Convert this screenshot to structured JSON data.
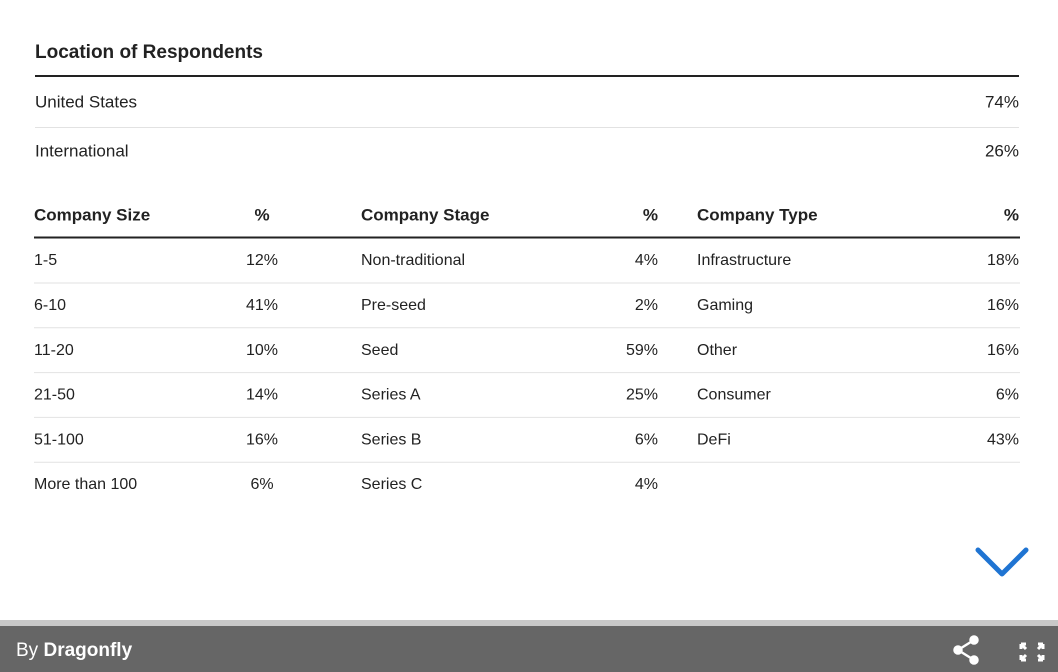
{
  "location": {
    "title": "Location of Respondents",
    "rows": [
      [
        "United States",
        "74%"
      ],
      [
        "International",
        "26%"
      ]
    ]
  },
  "tables": [
    {
      "headers": [
        "Company Size",
        "%"
      ],
      "rows": [
        [
          "1-5",
          "12%"
        ],
        [
          "6-10",
          "41%"
        ],
        [
          "11-20",
          "10%"
        ],
        [
          "21-50",
          "14%"
        ],
        [
          "51-100",
          "16%"
        ],
        [
          "More than 100",
          "6%"
        ]
      ]
    },
    {
      "headers": [
        "Company Stage",
        "%"
      ],
      "rows": [
        [
          "Non-traditional",
          "4%"
        ],
        [
          "Pre-seed",
          "2%"
        ],
        [
          "Seed",
          "59%"
        ],
        [
          "Series A",
          "25%"
        ],
        [
          "Series B",
          "6%"
        ],
        [
          "Series C",
          "4%"
        ]
      ]
    },
    {
      "headers": [
        "Company Type",
        "%"
      ],
      "rows": [
        [
          "Infrastructure",
          "18%"
        ],
        [
          "Gaming",
          "16%"
        ],
        [
          "Other",
          "16%"
        ],
        [
          "Consumer",
          "6%"
        ],
        [
          "DeFi",
          "43%"
        ]
      ]
    }
  ],
  "footer": {
    "prefix": "By",
    "brand": "Dragonfly"
  }
}
